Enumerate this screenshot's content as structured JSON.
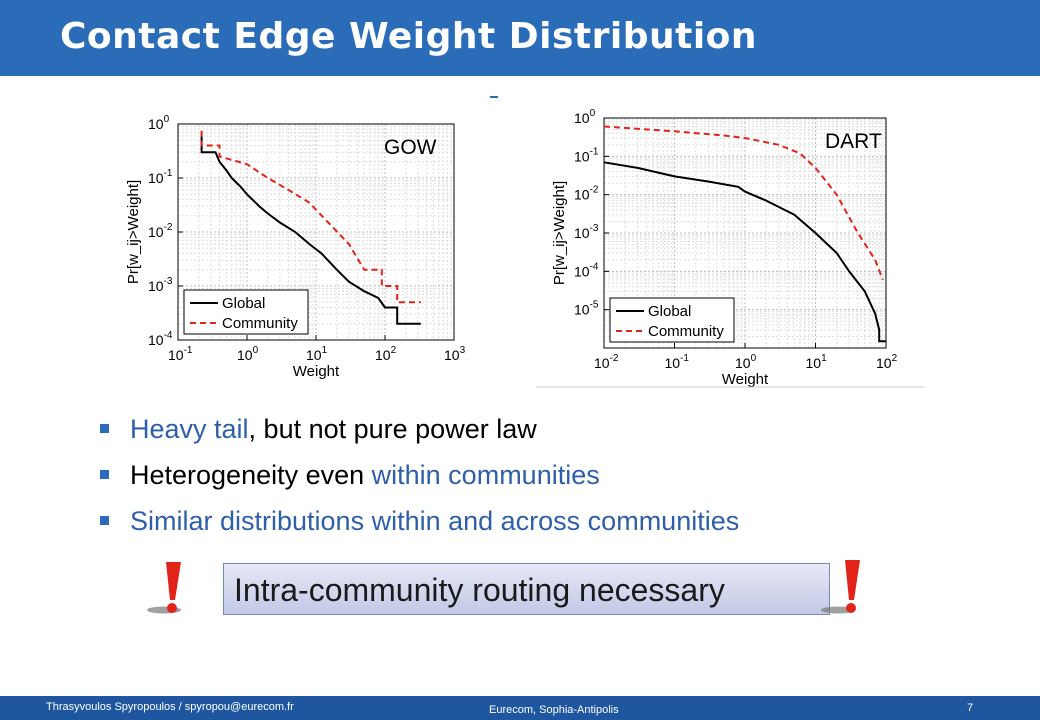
{
  "slide": {
    "title": "Contact Edge Weight Distribution",
    "bullets": [
      {
        "parts": [
          {
            "text": "Heavy tail",
            "blue": true
          },
          {
            "text": ", but not pure power law",
            "blue": false
          }
        ]
      },
      {
        "parts": [
          {
            "text": "Heterogeneity even ",
            "blue": false
          },
          {
            "text": "within communities",
            "blue": true
          }
        ]
      },
      {
        "parts": [
          {
            "text": "Similar distributions within and across communities",
            "blue": true
          }
        ]
      }
    ],
    "callout": "Intra-community routing necessary",
    "footer": {
      "left": "Thrasyvoulos Spyropoulos / spyropou@eurecom.fr",
      "center": "Eurecom, Sophia-Antipolis",
      "page": "7"
    },
    "colors": {
      "accent": "#2b6cb8",
      "highlight_text": "#2e5fa8",
      "exclamation": "#e2231a"
    }
  },
  "chart_data": [
    {
      "type": "line",
      "title": "GOW",
      "xlabel": "Weight",
      "ylabel": "Pr[w_ij>Weight]",
      "xscale": "log",
      "yscale": "log",
      "xlim": [
        0.1,
        1000
      ],
      "ylim": [
        0.0001,
        1
      ],
      "xticks": [
        0.1,
        1,
        10,
        100,
        1000
      ],
      "xtick_exponents": [
        "-1",
        "0",
        "1",
        "2",
        "3"
      ],
      "yticks": [
        0.0001,
        0.001,
        0.01,
        0.1,
        1
      ],
      "ytick_exponents": [
        "-4",
        "-3",
        "-2",
        "-1",
        "0"
      ],
      "grid": true,
      "legend": "bottom-left",
      "series": [
        {
          "name": "Global",
          "color": "#000000",
          "dash": "solid",
          "x": [
            0.22,
            0.22,
            0.35,
            0.4,
            0.5,
            0.6,
            0.8,
            1,
            1.5,
            2,
            3,
            5,
            8,
            12,
            20,
            30,
            50,
            80,
            100,
            150,
            150,
            330
          ],
          "y": [
            0.6,
            0.3,
            0.3,
            0.2,
            0.14,
            0.1,
            0.07,
            0.05,
            0.03,
            0.022,
            0.015,
            0.01,
            0.006,
            0.004,
            0.002,
            0.0012,
            0.0008,
            0.0006,
            0.0004,
            0.0004,
            0.0002,
            0.0002
          ]
        },
        {
          "name": "Community",
          "color": "#e2231a",
          "dash": "dashed",
          "x": [
            0.22,
            0.22,
            0.4,
            0.4,
            1,
            2,
            4,
            8,
            15,
            30,
            50,
            90,
            90,
            150,
            150,
            330
          ],
          "y": [
            0.75,
            0.4,
            0.4,
            0.25,
            0.18,
            0.1,
            0.06,
            0.035,
            0.015,
            0.006,
            0.002,
            0.002,
            0.001,
            0.001,
            0.0005,
            0.0005
          ]
        }
      ]
    },
    {
      "type": "line",
      "title": "DART",
      "xlabel": "Weight",
      "ylabel": "Pr[w_ij>Weight]",
      "xscale": "log",
      "yscale": "log",
      "xlim": [
        0.01,
        100
      ],
      "ylim": [
        1e-06,
        1
      ],
      "xticks": [
        0.01,
        0.1,
        1,
        10,
        100
      ],
      "xtick_exponents": [
        "-2",
        "-1",
        "0",
        "1",
        "2"
      ],
      "yticks": [
        1e-05,
        0.0001,
        0.001,
        0.01,
        0.1,
        1
      ],
      "ytick_exponents": [
        "-5",
        "-4",
        "-3",
        "-2",
        "-1",
        "0"
      ],
      "grid": true,
      "legend": "bottom-left",
      "series": [
        {
          "name": "Global",
          "color": "#000000",
          "dash": "solid",
          "x": [
            0.01,
            0.03,
            0.1,
            0.3,
            0.8,
            1,
            2,
            5,
            10,
            20,
            30,
            50,
            70,
            80,
            80,
            100
          ],
          "y": [
            0.07,
            0.05,
            0.03,
            0.022,
            0.016,
            0.012,
            0.007,
            0.003,
            0.001,
            0.0003,
            0.0001,
            3e-05,
            8e-06,
            3e-06,
            1.5e-06,
            1.5e-06
          ]
        },
        {
          "name": "Community",
          "color": "#e2231a",
          "dash": "dashed",
          "x": [
            0.01,
            0.1,
            0.5,
            1,
            3,
            6,
            10,
            20,
            40,
            70,
            90
          ],
          "y": [
            0.6,
            0.45,
            0.35,
            0.3,
            0.2,
            0.12,
            0.05,
            0.01,
            0.001,
            0.0002,
            6e-05
          ]
        }
      ]
    }
  ]
}
